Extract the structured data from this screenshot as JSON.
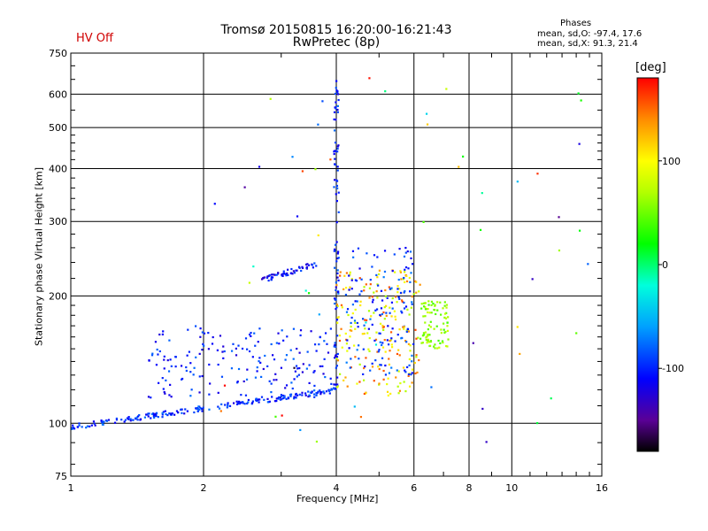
{
  "header": {
    "title_line1": "Tromsø 20150815 16:20:00-16:21:43",
    "title_line2": "RwPretec (8p)",
    "hv_status": "HV Off",
    "hv_color": "#d00000"
  },
  "phases_info": {
    "title": "Phases",
    "line_o": "mean, sd,O:  -97.4, 17.6",
    "line_x": "mean, sd,X:  91.3, 21.4"
  },
  "colorbar": {
    "title": "[deg]",
    "range": [
      -180,
      180
    ],
    "tick_labels": [
      "100",
      "0",
      "-100"
    ],
    "tick_values": [
      100,
      0,
      -100
    ]
  },
  "chart_data": {
    "type": "scatter",
    "title": "Tromsø 20150815 16:20:00-16:21:43",
    "subtitle": "RwPretec (8p)",
    "xlabel": "Frequency [MHz]",
    "ylabel": "Stationary phase Virtual Height [km]",
    "x_scale": "log",
    "y_scale": "log",
    "xlim": [
      1,
      16
    ],
    "ylim": [
      75,
      750
    ],
    "grid": true,
    "x_ticks": [
      1,
      2,
      4,
      6,
      8,
      10,
      16
    ],
    "x_tick_labels": [
      "1",
      "2",
      "4",
      "6",
      "8",
      "10",
      "16"
    ],
    "y_ticks": [
      75,
      100,
      200,
      300,
      400,
      500,
      600,
      750
    ],
    "y_tick_labels": [
      "75",
      "100",
      "200",
      "300",
      "400",
      "500",
      "600",
      "750"
    ],
    "color_metric": "phase [deg]",
    "point_groups": [
      {
        "name": "O-trace lower",
        "x_range": [
          1.0,
          4.0
        ],
        "y_start": 98,
        "y_end": 120,
        "phase_mean": -97,
        "count": 220
      },
      {
        "name": "F-layer spread 1.5-4 MHz",
        "x_range": [
          1.5,
          4.0
        ],
        "y_range": [
          115,
          170
        ],
        "phase_mean": -100,
        "count": 180
      },
      {
        "name": "Trace near 220 km",
        "x_range": [
          2.7,
          3.6
        ],
        "y_start": 218,
        "y_end": 238,
        "phase_mean": -110,
        "count": 60
      },
      {
        "name": "Vertical trace at 4 MHz",
        "x_range": [
          3.95,
          4.05
        ],
        "y_range": [
          120,
          660
        ],
        "phase_mean": -100,
        "count": 90
      },
      {
        "name": "X-trace 4-6 MHz",
        "x_range": [
          4.0,
          6.2
        ],
        "y_range": [
          115,
          230
        ],
        "phase_mean": 90,
        "count": 200
      },
      {
        "name": "O-trace 4.2-6 MHz",
        "x_range": [
          4.2,
          6.0
        ],
        "y_range": [
          130,
          260
        ],
        "phase_mean": -95,
        "count": 140
      },
      {
        "name": "Green-yellow cluster 6-7 MHz",
        "x_range": [
          6.2,
          7.2
        ],
        "y_range": [
          150,
          195
        ],
        "phase_mean": 60,
        "count": 90
      },
      {
        "name": "Scattered echoes",
        "x_range": [
          2,
          15
        ],
        "y_range": [
          90,
          660
        ],
        "phase_mean": 0,
        "count": 60
      }
    ]
  }
}
